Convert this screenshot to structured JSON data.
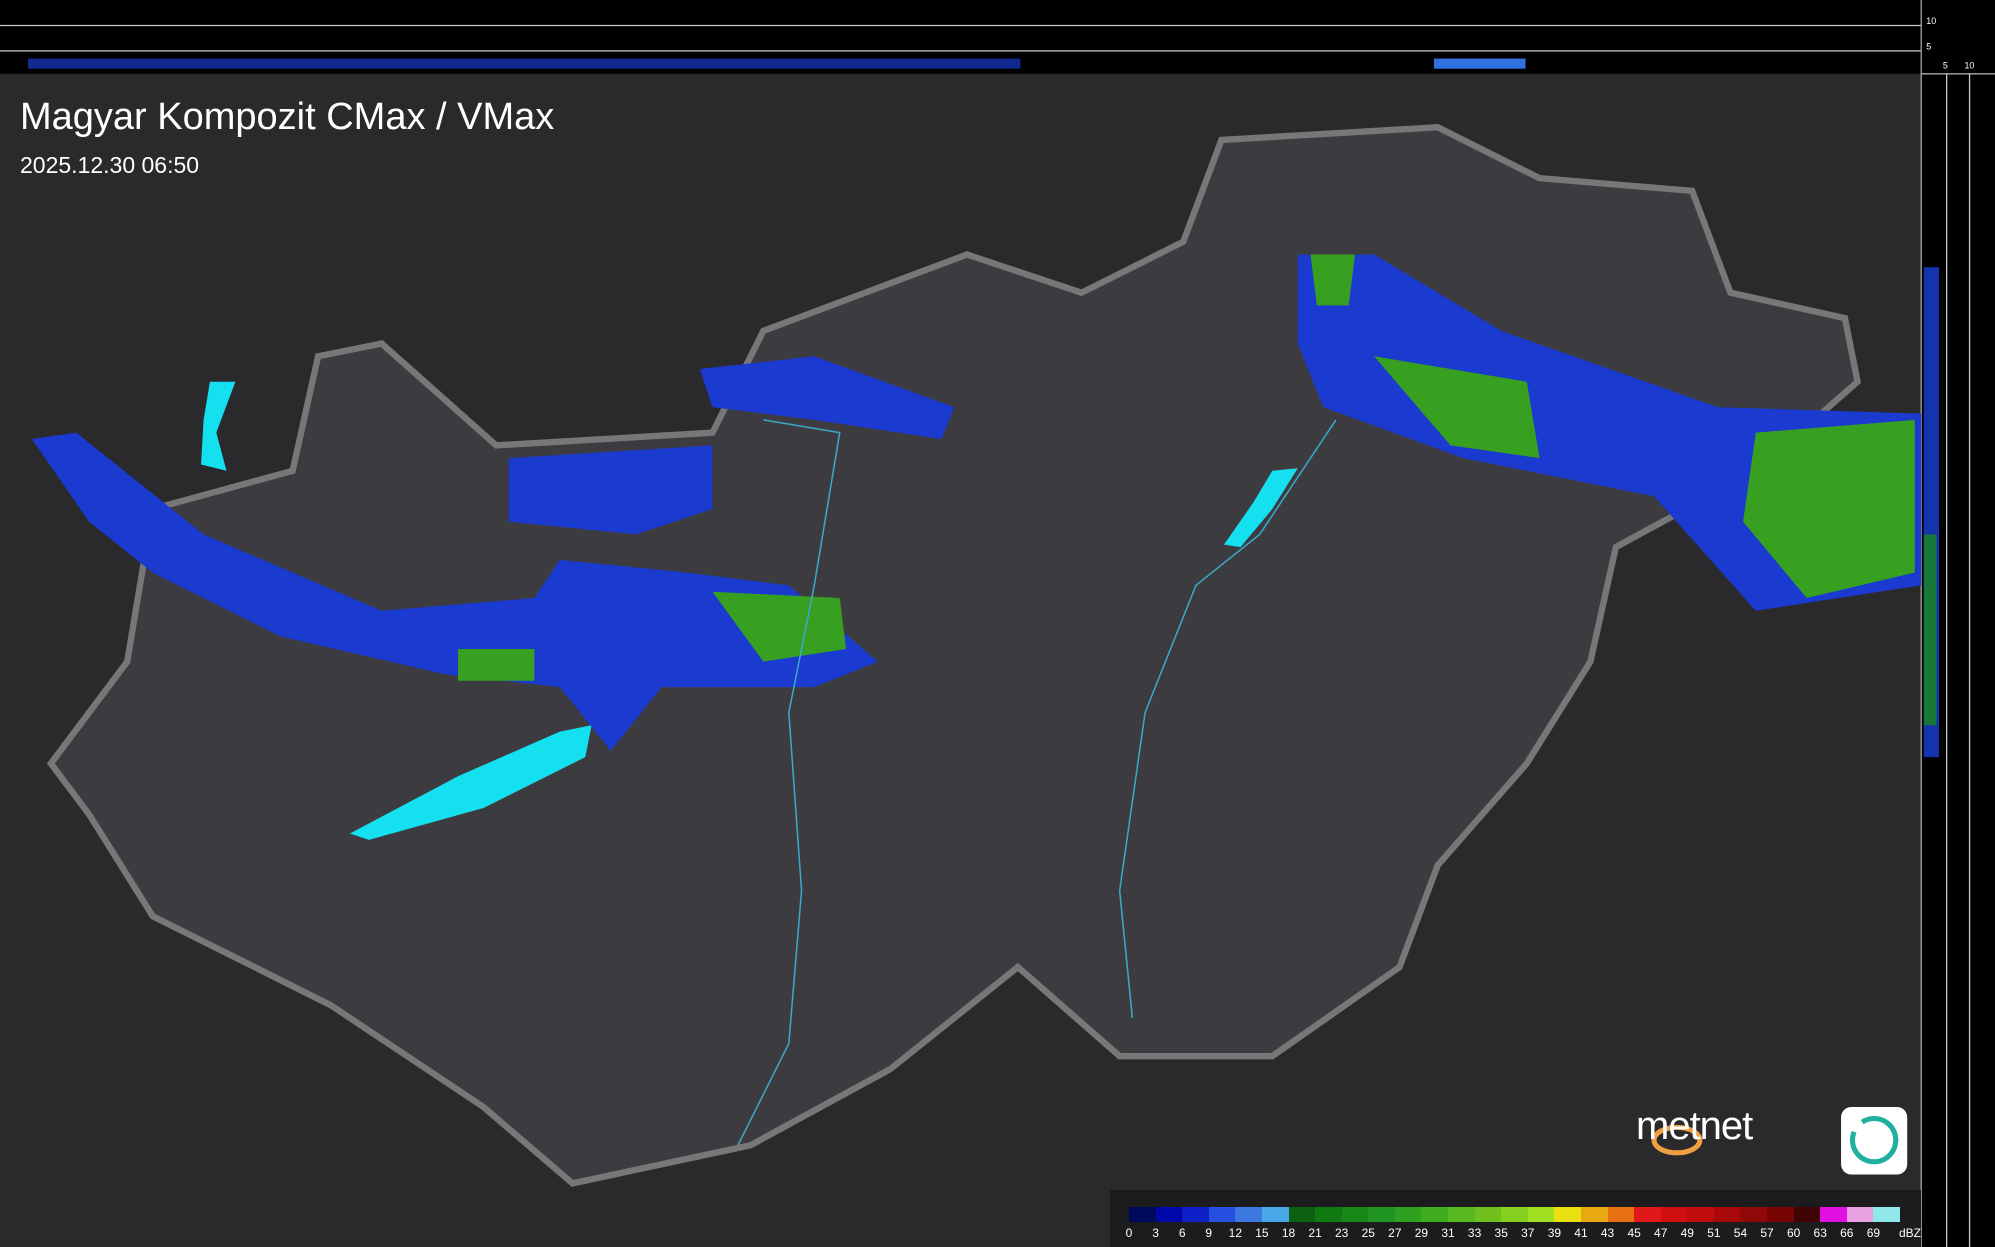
{
  "title": "Magyar Kompozit CMax / VMax",
  "datetime": "2025.12.30 06:50",
  "side_profile_ticks": {
    "top_axis": [
      "10",
      "5"
    ],
    "right_axis": [
      "5",
      "10"
    ]
  },
  "logo": {
    "text": "metnet",
    "app_icon": "swirl-app-icon"
  },
  "legend": {
    "unit": "dBZ",
    "labels": [
      "0",
      "3",
      "6",
      "9",
      "12",
      "15",
      "18",
      "21",
      "23",
      "25",
      "27",
      "29",
      "31",
      "33",
      "35",
      "37",
      "39",
      "41",
      "43",
      "45",
      "47",
      "49",
      "51",
      "54",
      "57",
      "60",
      "63",
      "66",
      "69"
    ],
    "colors": [
      "#000a5a",
      "#0008a8",
      "#1020c8",
      "#2850e0",
      "#3c78e0",
      "#48a8e8",
      "#0c6010",
      "#107a10",
      "#188818",
      "#209420",
      "#30a020",
      "#40ac20",
      "#58b820",
      "#70c020",
      "#88d020",
      "#a0e020",
      "#e8e010",
      "#e8a810",
      "#e87010",
      "#e01818",
      "#d01010",
      "#c00c0c",
      "#a80808",
      "#900808",
      "#780404",
      "#400404",
      "#e010e0",
      "#e8a0e0",
      "#90e8e8"
    ]
  }
}
